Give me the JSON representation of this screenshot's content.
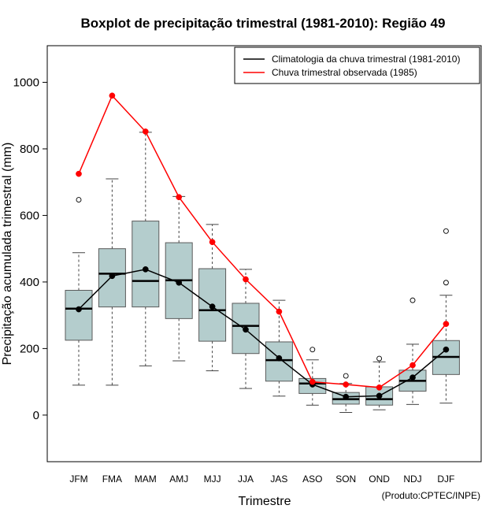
{
  "chart_data": {
    "type": "boxplot",
    "title": "Boxplot de precipitação trimestral (1981-2010): Região 49",
    "xlabel": "Trimestre",
    "ylabel": "Precipitação acumulada trimestral (mm)",
    "credit": "(Produto:CPTEC/INPE)",
    "ylim": [
      -140,
      1110
    ],
    "yticks": [
      0,
      200,
      400,
      600,
      800,
      1000
    ],
    "categories": [
      "JFM",
      "FMA",
      "MAM",
      "AMJ",
      "MJJ",
      "JJA",
      "JAS",
      "ASO",
      "SON",
      "OND",
      "NDJ",
      "DJF"
    ],
    "boxes": [
      {
        "whisker_low": 90,
        "q1": 225,
        "median": 320,
        "q3": 375,
        "whisker_high": 488,
        "outliers": [
          647
        ]
      },
      {
        "whisker_low": 90,
        "q1": 325,
        "median": 425,
        "q3": 500,
        "whisker_high": 710,
        "outliers": []
      },
      {
        "whisker_low": 148,
        "q1": 325,
        "median": 403,
        "q3": 583,
        "whisker_high": 850,
        "outliers": []
      },
      {
        "whisker_low": 163,
        "q1": 290,
        "median": 405,
        "q3": 518,
        "whisker_high": 657,
        "outliers": []
      },
      {
        "whisker_low": 133,
        "q1": 222,
        "median": 315,
        "q3": 440,
        "whisker_high": 573,
        "outliers": []
      },
      {
        "whisker_low": 80,
        "q1": 185,
        "median": 268,
        "q3": 336,
        "whisker_high": 438,
        "outliers": []
      },
      {
        "whisker_low": 57,
        "q1": 102,
        "median": 165,
        "q3": 220,
        "whisker_high": 345,
        "outliers": []
      },
      {
        "whisker_low": 30,
        "q1": 65,
        "median": 95,
        "q3": 110,
        "whisker_high": 166,
        "outliers": [
          197
        ]
      },
      {
        "whisker_low": 8,
        "q1": 33,
        "median": 48,
        "q3": 68,
        "whisker_high": 95,
        "outliers": [
          118
        ]
      },
      {
        "whisker_low": 16,
        "q1": 30,
        "median": 48,
        "q3": 85,
        "whisker_high": 160,
        "outliers": [
          170
        ]
      },
      {
        "whisker_low": 32,
        "q1": 72,
        "median": 103,
        "q3": 135,
        "whisker_high": 213,
        "outliers": [
          345
        ]
      },
      {
        "whisker_low": 36,
        "q1": 122,
        "median": 175,
        "q3": 224,
        "whisker_high": 360,
        "outliers": [
          398,
          553
        ]
      }
    ],
    "series": [
      {
        "name": "Climatologia da chuva trimestral (1981-2010)",
        "color": "#000000",
        "values": [
          318,
          418,
          438,
          398,
          326,
          257,
          171,
          92,
          55,
          58,
          113,
          197
        ]
      },
      {
        "name": "Chuva trimestral observada (1985)",
        "color": "#ff0000",
        "values": [
          725,
          960,
          852,
          655,
          520,
          408,
          311,
          100,
          92,
          83,
          150,
          274
        ]
      }
    ],
    "colors": {
      "box_fill": "#b4cdcd",
      "box_stroke": "#5a5a5a",
      "whisker": "#444444"
    }
  }
}
